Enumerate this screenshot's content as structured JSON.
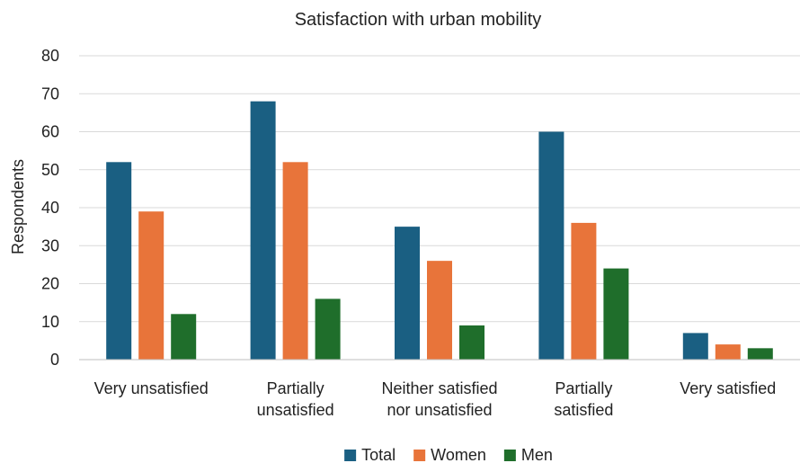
{
  "chart_data": {
    "type": "bar",
    "title": "Satisfaction with urban mobility",
    "xlabel": "",
    "ylabel": "Respondents",
    "ylim": [
      0,
      80
    ],
    "yticks": [
      0,
      10,
      20,
      30,
      40,
      50,
      60,
      70,
      80
    ],
    "grid": true,
    "legend_position": "bottom",
    "categories": [
      [
        "Very unsatisfied"
      ],
      [
        "Partially",
        "unsatisfied"
      ],
      [
        "Neither satisfied",
        "nor unsatisfied"
      ],
      [
        "Partially",
        "satisfied"
      ],
      [
        "Very satisfied"
      ]
    ],
    "series": [
      {
        "name": "Total",
        "color": "#1a5f82",
        "values": [
          52,
          68,
          35,
          60,
          7
        ]
      },
      {
        "name": "Women",
        "color": "#e8743a",
        "values": [
          39,
          52,
          26,
          36,
          4
        ]
      },
      {
        "name": "Men",
        "color": "#1f6e2b",
        "values": [
          12,
          16,
          9,
          24,
          3
        ]
      }
    ]
  }
}
